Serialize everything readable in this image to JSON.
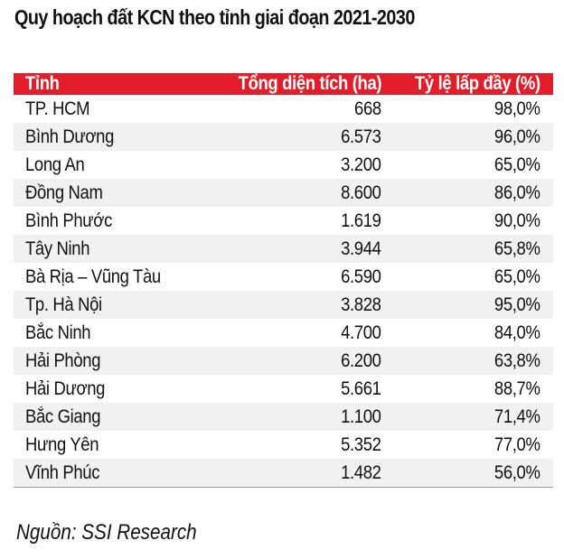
{
  "title": "Quy hoạch đất KCN theo tỉnh giai đoạn 2021-2030",
  "table": {
    "headers": [
      "Tỉnh",
      "Tổng diện tích (ha)",
      "Tỷ lệ lấp đầy (%)"
    ],
    "rows": [
      [
        "TP. HCM",
        "668",
        "98,0%"
      ],
      [
        "Bình Dương",
        "6.573",
        "96,0%"
      ],
      [
        "Long An",
        "3.200",
        "65,0%"
      ],
      [
        "Đồng Nam",
        "8.600",
        "86,0%"
      ],
      [
        "Bình Phước",
        "1.619",
        "90,0%"
      ],
      [
        "Tây Ninh",
        "3.944",
        "65,8%"
      ],
      [
        "Bà Rịa – Vũng Tàu",
        "6.590",
        "65,0%"
      ],
      [
        "Tp. Hà Nội",
        "3.828",
        "95,0%"
      ],
      [
        "Bắc Ninh",
        "4.700",
        "84,0%"
      ],
      [
        "Hải Phòng",
        "6.200",
        "63,8%"
      ],
      [
        "Hải Dương",
        "5.661",
        "88,7%"
      ],
      [
        "Bắc Giang",
        "1.100",
        "71,4%"
      ],
      [
        "Hưng Yên",
        "5.352",
        "77,0%"
      ],
      [
        "Vĩnh Phúc",
        "1.482",
        "56,0%"
      ]
    ]
  },
  "source": "Nguồn: SSI Research",
  "colors": {
    "header_bg": "#e31e2a",
    "stripe": "#f1f1f1"
  }
}
